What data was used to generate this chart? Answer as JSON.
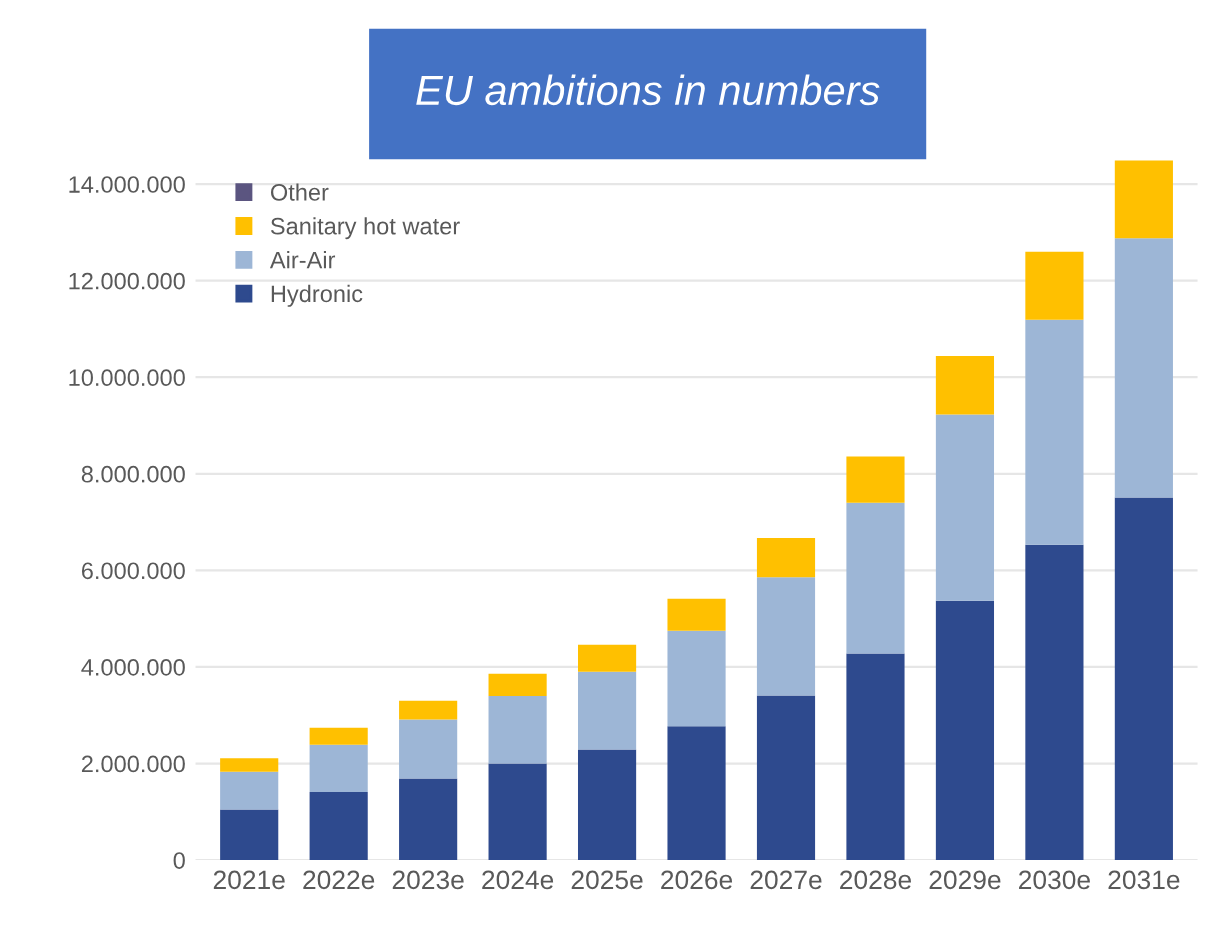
{
  "chart_data": {
    "type": "bar",
    "title": "EU ambitions in numbers",
    "stacked": true,
    "categories": [
      "2021e",
      "2022e",
      "2023e",
      "2024e",
      "2025e",
      "2026e",
      "2027e",
      "2028e",
      "2029e",
      "2030e",
      "2031e"
    ],
    "series": [
      {
        "name": "Hydronic",
        "color": "#2e4a8e",
        "values": [
          1050000,
          1410000,
          1690000,
          2000000,
          2290000,
          2770000,
          3410000,
          4280000,
          5370000,
          6530000,
          7510000
        ]
      },
      {
        "name": "Air-Air",
        "color": "#9db6d6",
        "values": [
          780000,
          980000,
          1220000,
          1400000,
          1610000,
          1980000,
          2450000,
          3120000,
          3860000,
          4660000,
          5370000
        ]
      },
      {
        "name": "Sanitary hot water",
        "color": "#ffc000",
        "values": [
          280000,
          350000,
          390000,
          460000,
          560000,
          660000,
          810000,
          960000,
          1210000,
          1410000,
          1610000
        ]
      },
      {
        "name": "Other",
        "color": "#5b5580",
        "values": [
          0,
          0,
          0,
          0,
          0,
          0,
          0,
          0,
          0,
          0,
          0
        ]
      }
    ],
    "ylim": [
      0,
      14600000
    ],
    "yticks": [
      {
        "value": 0,
        "label": "0"
      },
      {
        "value": 2000000,
        "label": "2.000.000"
      },
      {
        "value": 4000000,
        "label": "4.000.000"
      },
      {
        "value": 6000000,
        "label": "6.000.000"
      },
      {
        "value": 8000000,
        "label": "8.000.000"
      },
      {
        "value": 10000000,
        "label": "10.000.000"
      },
      {
        "value": 12000000,
        "label": "12.000.000"
      },
      {
        "value": 14000000,
        "label": "14.000.000"
      }
    ],
    "grid": "y",
    "legend": "top left"
  }
}
